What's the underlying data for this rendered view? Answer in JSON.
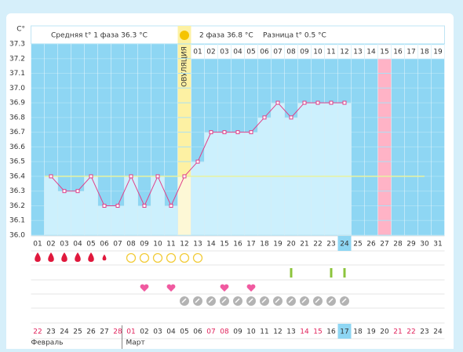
{
  "chart_data": {
    "type": "bbt",
    "y_unit": "C°",
    "phase1_text": "Средняя t° 1 фаза 36.3 °C",
    "phase2_text": "2 фаза 36.8 °C",
    "diff_text": "Разница t° 0.5 °C",
    "ovulation_text": "ОВУЛЯЦИЯ",
    "ylim": [
      36.0,
      37.3
    ],
    "yticks": [
      37.3,
      37.2,
      37.1,
      {
        "value": 37.0,
        "label": "37.0"
      },
      36.9,
      36.8,
      36.7,
      36.6,
      36.5,
      36.4,
      36.3,
      36.2,
      36.1,
      {
        "value": 36.0,
        "label": "36.0"
      }
    ],
    "grid": true,
    "coverline": 36.4,
    "line_color": "#e0408a",
    "cycle_days": [
      "01",
      "02",
      "03",
      "04",
      "05",
      "06",
      "07",
      "08",
      "09",
      "10",
      "11",
      "12",
      "13",
      "14",
      "15",
      "16",
      "17",
      "18",
      "19",
      "20",
      "21",
      "22",
      "23",
      "24",
      "25",
      "26",
      "27",
      "28",
      "29",
      "30",
      "31"
    ],
    "values": [
      null,
      36.4,
      36.3,
      36.3,
      36.4,
      36.2,
      36.2,
      36.4,
      36.2,
      36.4,
      36.2,
      36.4,
      36.5,
      36.7,
      36.7,
      36.7,
      36.7,
      36.8,
      36.9,
      36.8,
      36.9,
      36.9,
      36.9,
      36.9,
      null,
      null,
      null,
      null,
      null,
      null,
      null
    ],
    "phase2_days": [
      "01",
      "02",
      "03",
      "04",
      "05",
      "06",
      "07",
      "08",
      "09",
      "10",
      "11",
      "12",
      "13",
      "14",
      "15",
      "16",
      "17",
      "18",
      "19"
    ],
    "dates": [
      "22",
      "23",
      "24",
      "25",
      "26",
      "27",
      "28",
      "01",
      "02",
      "03",
      "04",
      "05",
      "06",
      "07",
      "08",
      "09",
      "10",
      "11",
      "12",
      "13",
      "14",
      "15",
      "16",
      "17",
      "18",
      "19",
      "20",
      "21",
      "22",
      "23",
      "24"
    ],
    "red_dates": [
      0,
      6,
      7,
      13,
      14,
      20,
      21,
      27,
      28
    ],
    "months": [
      {
        "name": "Февраль",
        "start": 1
      },
      {
        "name": "Март",
        "start": 8
      }
    ],
    "ovulation_day": 12,
    "selected_day": 24,
    "marked_phase2_day": 15,
    "bleeding": [
      {
        "day": 1,
        "level": 2
      },
      {
        "day": 2,
        "level": 2
      },
      {
        "day": 3,
        "level": 2
      },
      {
        "day": 4,
        "level": 2
      },
      {
        "day": 5,
        "level": 2
      },
      {
        "day": 6,
        "level": 1
      }
    ],
    "mucus_days": [
      8,
      9,
      10,
      11,
      12,
      13
    ],
    "test_days": [
      20,
      23,
      24
    ],
    "heart_days": [
      9,
      11,
      15,
      17
    ],
    "check_days": [
      12,
      13,
      14,
      15,
      16,
      17,
      18,
      19,
      20,
      21,
      22,
      23,
      24
    ]
  }
}
